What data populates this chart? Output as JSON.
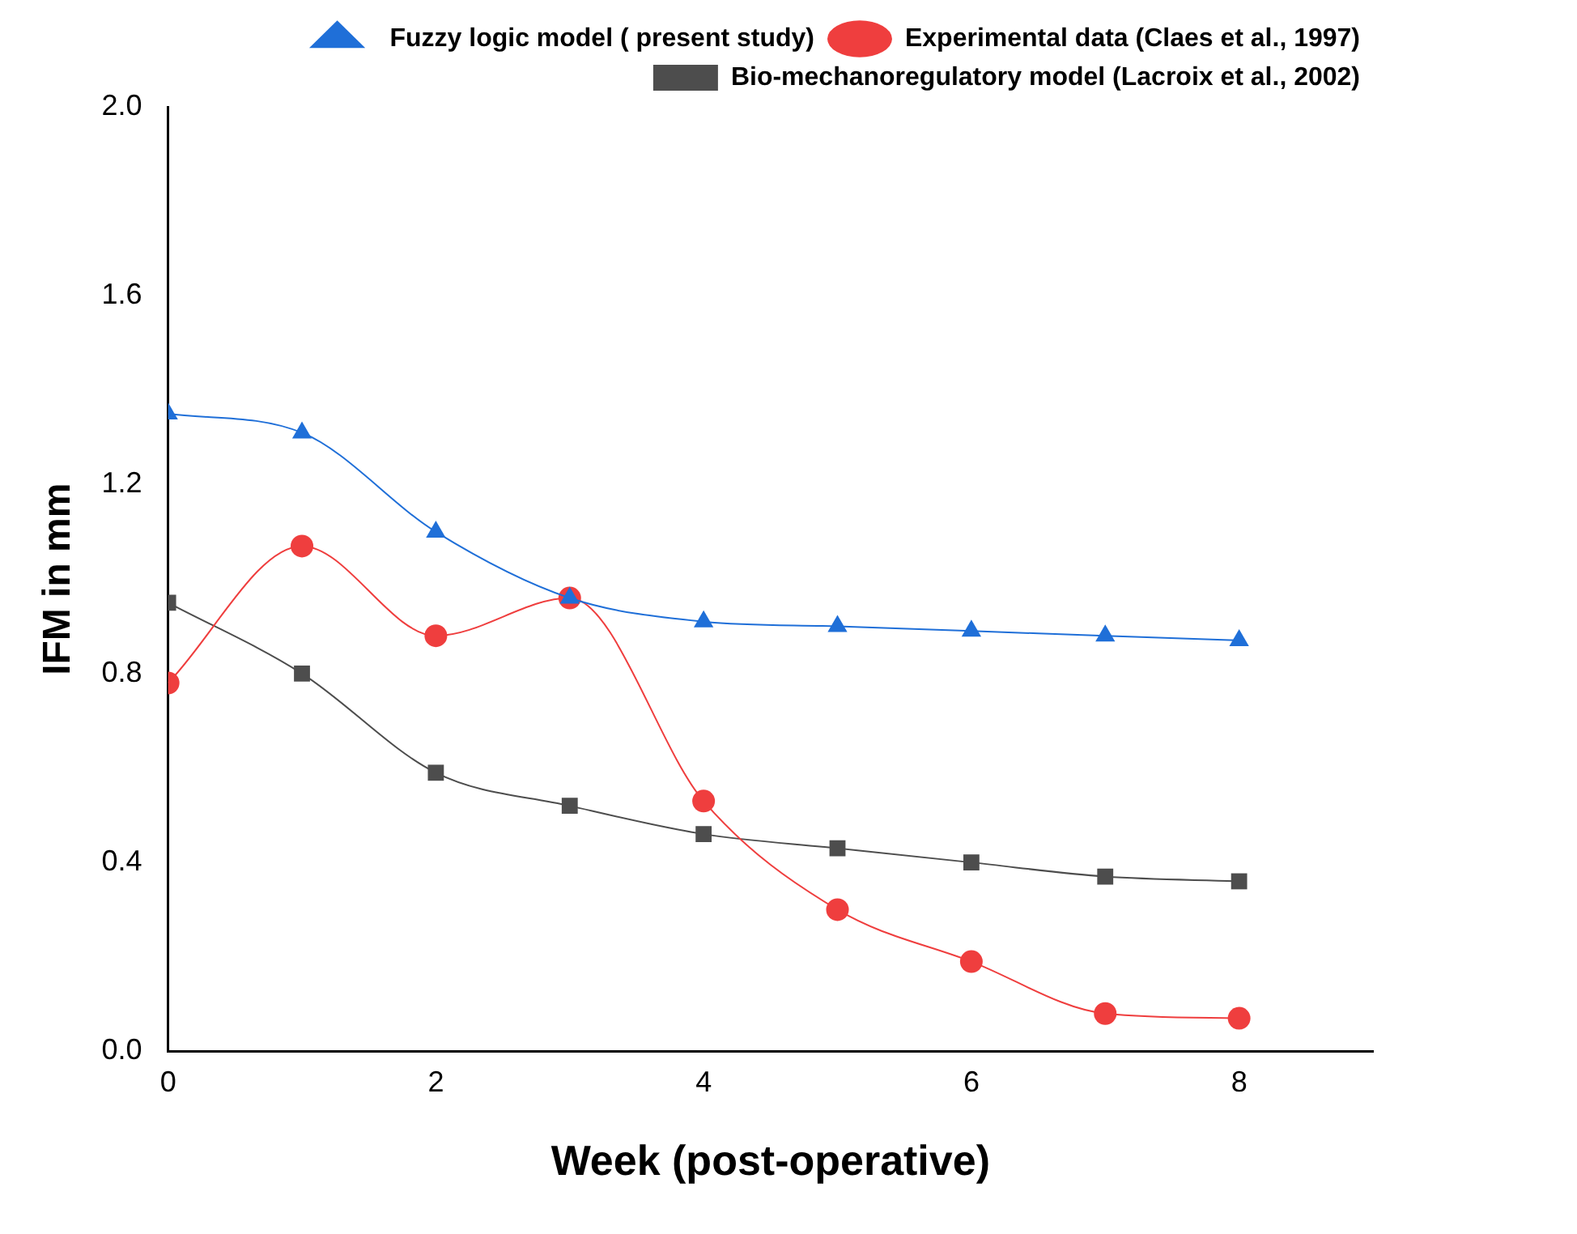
{
  "chart_data": {
    "type": "line",
    "xlabel": "Week (post-operative)",
    "ylabel": "IFM in mm",
    "x": [
      0,
      1,
      2,
      3,
      4,
      5,
      6,
      7,
      8
    ],
    "series": [
      {
        "name": "Bio-mechanoregulatory model (Lacroix et al., 2002)",
        "color": "#4d4d4d",
        "marker": "square",
        "values": [
          0.95,
          0.8,
          0.59,
          0.52,
          0.46,
          0.43,
          0.4,
          0.37,
          0.36
        ]
      },
      {
        "name": "Experimental data (Claes et al., 1997)",
        "color": "#ef3e3e",
        "marker": "circle",
        "values": [
          0.78,
          1.07,
          0.88,
          0.96,
          0.53,
          0.3,
          0.19,
          0.08,
          0.07
        ]
      },
      {
        "name": " Fuzzy logic model ( present study)",
        "color": "#1f6fd8",
        "marker": "triangle",
        "values": [
          1.35,
          1.31,
          1.1,
          0.96,
          0.91,
          0.9,
          0.89,
          0.88,
          0.87
        ]
      }
    ],
    "xlim": [
      0,
      9
    ],
    "xticks": [
      0,
      2,
      4,
      6,
      8
    ],
    "ylim": [
      0,
      2
    ],
    "yticks": [
      {
        "value": 0,
        "label": "0.0"
      },
      {
        "value": 0.4,
        "label": "0.4"
      },
      {
        "value": 0.8,
        "label": "0.8"
      },
      {
        "value": 1.2,
        "label": "1.2"
      },
      {
        "value": 1.6,
        "label": "1.6"
      },
      {
        "value": 2,
        "label": "2.0"
      }
    ],
    "grid": false,
    "legend": "top right",
    "line_style": "solid"
  }
}
